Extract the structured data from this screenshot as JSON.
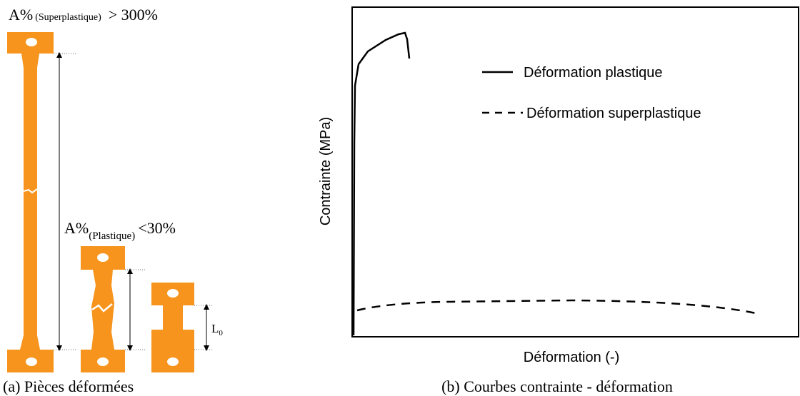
{
  "panel_a": {
    "caption": "(a) Pièces déformées",
    "superplastic_label": {
      "main": "A%",
      "sub": "(Superplastique)",
      "suffix": "> 300%"
    },
    "plastic_label": {
      "main": "A%",
      "sub": "(Plastique)",
      "suffix": "<30%"
    },
    "gauge_label": {
      "main": "L",
      "sub": "0"
    }
  },
  "panel_b": {
    "caption": "(b) Courbes contrainte - déformation",
    "y_axis_label": "Contrainte (MPa)",
    "x_axis_label": "Déformation (-)",
    "legend": [
      "Déformation plastique",
      "Déformation superplastique"
    ]
  }
}
